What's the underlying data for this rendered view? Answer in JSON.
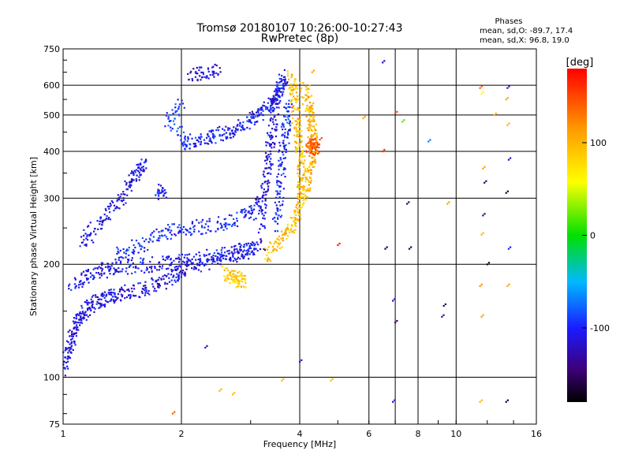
{
  "chart_data": {
    "type": "scatter",
    "title": "Tromsø 20180107 10:26:00-10:27:43",
    "subtitle": "RwPretec (8p)",
    "xlabel": "Frequency [MHz]",
    "ylabel": "Stationary phase Virtual Height [km]",
    "xscale": "log2",
    "yscale": "log",
    "xlim": [
      1,
      16
    ],
    "ylim": [
      75,
      750
    ],
    "x_ticks": [
      1,
      2,
      4,
      6,
      8,
      10,
      16
    ],
    "x_tick_labels": [
      "1",
      "2",
      "4",
      "6",
      "8",
      "10",
      "16"
    ],
    "x_grid": [
      2,
      4,
      6,
      7,
      8,
      10
    ],
    "y_ticks": [
      75,
      100,
      200,
      300,
      400,
      500,
      600,
      750
    ],
    "y_tick_labels": [
      "75",
      "100",
      "200",
      "300",
      "400",
      "500",
      "600",
      "750"
    ],
    "y_grid": [
      100,
      200,
      300,
      400,
      500,
      600
    ],
    "grid": true,
    "info": {
      "heading": "Phases",
      "line_o": "mean, sd,O: -89.7, 17.4",
      "line_x": "mean, sd,X:  96.8, 19.0"
    },
    "colorbar": {
      "label": "[deg]",
      "min": -180,
      "max": 180,
      "ticks": [
        100,
        0,
        -100
      ],
      "tick_labels": [
        "100",
        "0",
        "-100"
      ],
      "colormap": "rainbow"
    },
    "traces": [
      {
        "phase": -110,
        "points": [
          [
            1.0,
            105
          ],
          [
            1.02,
            115
          ],
          [
            1.05,
            125
          ],
          [
            1.08,
            135
          ],
          [
            1.1,
            145
          ],
          [
            1.15,
            152
          ],
          [
            1.2,
            158
          ],
          [
            1.28,
            162
          ],
          [
            1.35,
            165
          ],
          [
            1.45,
            168
          ],
          [
            1.6,
            172
          ],
          [
            1.75,
            178
          ],
          [
            1.9,
            185
          ],
          [
            2.0,
            192
          ],
          [
            2.2,
            200
          ],
          [
            2.5,
            206
          ],
          [
            2.8,
            212
          ],
          [
            3.0,
            218
          ],
          [
            3.2,
            228
          ]
        ]
      },
      {
        "phase": -105,
        "points": [
          [
            1.05,
            175
          ],
          [
            1.15,
            185
          ],
          [
            1.25,
            192
          ],
          [
            1.35,
            196
          ],
          [
            1.5,
            198
          ],
          [
            1.7,
            200
          ],
          [
            1.9,
            202
          ],
          [
            2.1,
            205
          ],
          [
            2.4,
            210
          ],
          [
            2.7,
            215
          ],
          [
            3.0,
            222
          ]
        ]
      },
      {
        "phase": -108,
        "points": [
          [
            1.12,
            225
          ],
          [
            1.2,
            250
          ],
          [
            1.3,
            275
          ],
          [
            1.4,
            300
          ],
          [
            1.5,
            335
          ],
          [
            1.55,
            355
          ],
          [
            1.62,
            370
          ]
        ]
      },
      {
        "phase": -100,
        "points": [
          [
            1.35,
            210
          ],
          [
            1.5,
            220
          ],
          [
            1.7,
            235
          ],
          [
            1.9,
            245
          ],
          [
            2.1,
            250
          ],
          [
            2.4,
            255
          ],
          [
            2.7,
            262
          ],
          [
            3.0,
            275
          ],
          [
            3.2,
            290
          ]
        ]
      },
      {
        "phase": -102,
        "points": [
          [
            2.0,
            420
          ],
          [
            2.2,
            430
          ],
          [
            2.4,
            440
          ],
          [
            2.6,
            450
          ],
          [
            2.8,
            465
          ],
          [
            3.0,
            485
          ],
          [
            3.2,
            505
          ],
          [
            3.4,
            530
          ],
          [
            3.5,
            560
          ],
          [
            3.6,
            600
          ],
          [
            3.65,
            640
          ]
        ]
      },
      {
        "phase": -112,
        "points": [
          [
            3.2,
            250
          ],
          [
            3.25,
            300
          ],
          [
            3.3,
            350
          ],
          [
            3.35,
            400
          ],
          [
            3.4,
            450
          ],
          [
            3.45,
            520
          ],
          [
            3.5,
            600
          ]
        ]
      },
      {
        "phase": -95,
        "points": [
          [
            3.5,
            250
          ],
          [
            3.55,
            300
          ],
          [
            3.6,
            360
          ],
          [
            3.65,
            420
          ],
          [
            3.7,
            480
          ],
          [
            3.75,
            540
          ]
        ]
      },
      {
        "phase": 95,
        "points": [
          [
            3.3,
            210
          ],
          [
            3.5,
            225
          ],
          [
            3.7,
            240
          ],
          [
            3.9,
            262
          ],
          [
            4.0,
            285
          ],
          [
            4.05,
            320
          ],
          [
            4.05,
            360
          ],
          [
            4.0,
            410
          ],
          [
            3.95,
            460
          ],
          [
            3.9,
            520
          ],
          [
            3.85,
            590
          ],
          [
            3.8,
            630
          ]
        ]
      },
      {
        "phase": 100,
        "points": [
          [
            4.1,
            300
          ],
          [
            4.2,
            340
          ],
          [
            4.3,
            380
          ],
          [
            4.35,
            420
          ],
          [
            4.3,
            460
          ],
          [
            4.25,
            500
          ],
          [
            4.2,
            540
          ],
          [
            4.1,
            600
          ]
        ]
      },
      {
        "phase": 140,
        "points": [
          [
            4.25,
            400
          ],
          [
            4.3,
            410
          ],
          [
            4.35,
            420
          ],
          [
            4.4,
            405
          ]
        ]
      },
      {
        "phase": 90,
        "points": [
          [
            2.6,
            190
          ],
          [
            2.7,
            185
          ],
          [
            2.8,
            182
          ],
          [
            2.9,
            180
          ]
        ]
      },
      {
        "phase": -100,
        "points": [
          [
            1.75,
            310
          ],
          [
            1.8,
            315
          ]
        ]
      },
      {
        "phase": -115,
        "points": [
          [
            2.1,
            640
          ],
          [
            2.3,
            650
          ],
          [
            2.5,
            655
          ]
        ]
      },
      {
        "phase": -90,
        "points": [
          [
            2.0,
            540
          ],
          [
            1.85,
            480
          ],
          [
            2.15,
            420
          ]
        ]
      }
    ],
    "scatter": [
      [
        6.5,
        690,
        -120
      ],
      [
        7.0,
        505,
        150
      ],
      [
        7.3,
        480,
        20
      ],
      [
        7.5,
        290,
        -150
      ],
      [
        7.6,
        220,
        -160
      ],
      [
        6.5,
        400,
        160
      ],
      [
        6.6,
        220,
        -160
      ],
      [
        5.0,
        225,
        170
      ],
      [
        6.9,
        160,
        -120
      ],
      [
        7.0,
        140,
        -150
      ],
      [
        5.8,
        490,
        110
      ],
      [
        8.5,
        425,
        -70
      ],
      [
        9.5,
        290,
        110
      ],
      [
        9.2,
        145,
        -130
      ],
      [
        9.3,
        155,
        -160
      ],
      [
        11.5,
        590,
        140
      ],
      [
        11.6,
        570,
        60
      ],
      [
        11.7,
        360,
        110
      ],
      [
        11.8,
        330,
        -150
      ],
      [
        11.7,
        270,
        -140
      ],
      [
        11.6,
        240,
        100
      ],
      [
        12.0,
        200,
        -170
      ],
      [
        11.5,
        175,
        120
      ],
      [
        11.6,
        145,
        110
      ],
      [
        11.5,
        86,
        100
      ],
      [
        13.5,
        590,
        -110
      ],
      [
        13.4,
        550,
        110
      ],
      [
        13.5,
        470,
        100
      ],
      [
        13.6,
        380,
        -120
      ],
      [
        13.4,
        310,
        -160
      ],
      [
        13.6,
        220,
        -100
      ],
      [
        13.5,
        175,
        110
      ],
      [
        13.4,
        86,
        -160
      ],
      [
        12.5,
        500,
        100
      ],
      [
        6.9,
        86,
        -120
      ],
      [
        4.0,
        110,
        -110
      ],
      [
        3.6,
        98,
        100
      ],
      [
        4.8,
        98,
        100
      ],
      [
        2.3,
        120,
        -120
      ],
      [
        1.9,
        80,
        140
      ],
      [
        2.5,
        92,
        100
      ],
      [
        2.7,
        90,
        100
      ],
      [
        4.5,
        430,
        150
      ],
      [
        4.3,
        650,
        110
      ]
    ]
  }
}
